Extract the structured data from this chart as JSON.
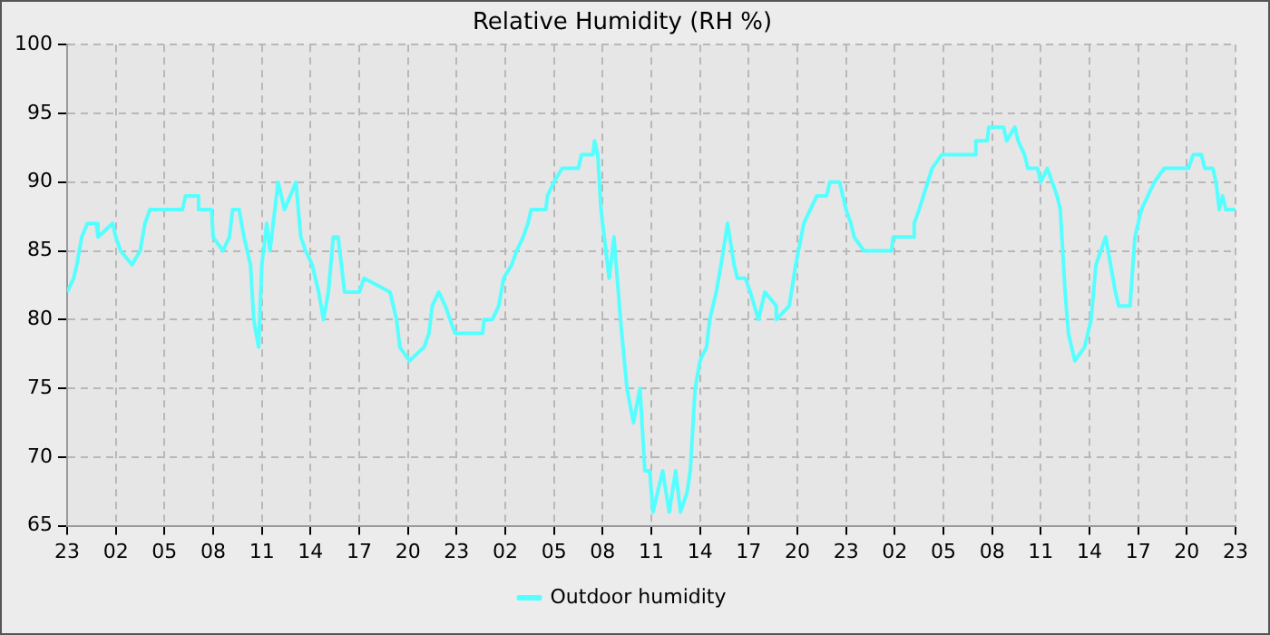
{
  "chart_data": {
    "type": "line",
    "title": "Relative Humidity (RH %)",
    "x": [
      "--01-01T23:00",
      "--01-01T23:24",
      "--01-01T23:36",
      "--01-01T23:54",
      "--01-02T00:15",
      "--01-02T00:48",
      "--01-02T00:54",
      "--01-02T01:48",
      "--01-02T02:00",
      "--01-02T02:18",
      "--01-02T03:00",
      "--01-02T03:30",
      "--01-02T03:48",
      "--01-02T04:06",
      "--01-02T06:06",
      "--01-02T06:18",
      "--01-02T07:06",
      "--01-02T07:06",
      "--01-02T07:54",
      "--01-02T08:00",
      "--01-02T08:36",
      "--01-02T09:00",
      "--01-02T09:12",
      "--01-02T09:36",
      "--01-02T09:54",
      "--01-02T10:18",
      "--01-02T10:30",
      "--01-02T10:48",
      "--01-02T11:00",
      "--01-02T11:18",
      "--01-02T11:30",
      "--01-02T12:00",
      "--01-02T12:24",
      "--01-02T13:06",
      "--01-02T13:24",
      "--01-02T13:42",
      "--01-02T14:06",
      "--01-02T14:30",
      "--01-02T14:48",
      "--01-02T15:06",
      "--01-02T15:24",
      "--01-02T15:42",
      "--01-02T16:06",
      "--01-02T17:00",
      "--01-02T17:18",
      "--01-02T18:54",
      "--01-02T19:18",
      "--01-02T19:30",
      "--01-02T20:06",
      "--01-02T21:00",
      "--01-02T21:18",
      "--01-02T21:30",
      "--01-02T21:54",
      "--01-02T22:18",
      "--01-02T22:54",
      "--01-03T00:36",
      "--01-03T00:42",
      "--01-03T01:12",
      "--01-03T01:36",
      "--01-03T01:54",
      "--01-03T02:24",
      "--01-03T02:42",
      "--01-03T03:06",
      "--01-03T03:24",
      "--01-03T03:36",
      "--01-03T04:30",
      "--01-03T04:36",
      "--01-03T05:00",
      "--01-03T05:30",
      "--01-03T06:30",
      "--01-03T06:42",
      "--01-03T07:24",
      "--01-03T07:30",
      "--01-03T07:42",
      "--01-03T07:54",
      "--01-03T08:12",
      "--01-03T08:24",
      "--01-03T08:42",
      "--01-03T09:06",
      "--01-03T09:30",
      "--01-03T09:54",
      "--01-03T10:18",
      "--01-03T10:36",
      "--01-03T10:54",
      "--01-03T11:06",
      "--01-03T11:42",
      "--01-03T12:06",
      "--01-03T12:30",
      "--01-03T12:48",
      "--01-03T13:12",
      "--01-03T13:24",
      "--01-03T13:42",
      "--01-03T14:00",
      "--01-03T14:24",
      "--01-03T14:36",
      "--01-03T15:00",
      "--01-03T15:18",
      "--01-03T15:42",
      "--01-03T16:06",
      "--01-03T16:18",
      "--01-03T16:48",
      "--01-03T17:06",
      "--01-03T17:36",
      "--01-03T18:00",
      "--01-03T18:42",
      "--01-03T18:42",
      "--01-03T19:30",
      "--01-03T19:54",
      "--01-03T20:24",
      "--01-03T21:12",
      "--01-03T21:48",
      "--01-03T22:00",
      "--01-03T22:36",
      "--01-03T23:00",
      "--01-03T23:18",
      "--01-03T23:30",
      "--01-04T00:06",
      "--01-04T01:48",
      "--01-04T01:54",
      "--01-04T03:06",
      "--01-04T03:12",
      "--01-04T03:30",
      "--01-04T03:54",
      "--01-04T04:18",
      "--01-04T04:54",
      "--01-04T07:00",
      "--01-04T07:00",
      "--01-04T07:42",
      "--01-04T07:48",
      "--01-04T08:42",
      "--01-04T08:54",
      "--01-04T09:24",
      "--01-04T09:36",
      "--01-04T10:00",
      "--01-04T10:12",
      "--01-04T10:48",
      "--01-04T11:00",
      "--01-04T11:24",
      "--01-04T11:42",
      "--01-04T12:00",
      "--01-04T12:12",
      "--01-04T12:30",
      "--01-04T12:42",
      "--01-04T13:06",
      "--01-04T13:42",
      "--01-04T14:06",
      "--01-04T14:24",
      "--01-04T14:42",
      "--01-04T15:00",
      "--01-04T15:18",
      "--01-04T15:36",
      "--01-04T15:48",
      "--01-04T16:30",
      "--01-04T16:48",
      "--01-04T17:12",
      "--01-04T17:36",
      "--01-04T18:00",
      "--01-04T18:36",
      "--01-04T20:06",
      "--01-04T20:24",
      "--01-04T20:54",
      "--01-04T21:06",
      "--01-04T21:36",
      "--01-04T21:48",
      "--01-04T22:00",
      "--01-04T22:12",
      "--01-04T22:24",
      "--01-04T23:00"
    ],
    "series": [
      {
        "name": "Outdoor humidity",
        "color": "#55ffff",
        "values": [
          82,
          83,
          84,
          86,
          87,
          87,
          86,
          87,
          86,
          85,
          84,
          85,
          87,
          88,
          88,
          89,
          89,
          88,
          88,
          86,
          85,
          86,
          88,
          88,
          86,
          84,
          80,
          78,
          84,
          87,
          85,
          90,
          88,
          90,
          86,
          85,
          84,
          82,
          80,
          82,
          86,
          86,
          82,
          82,
          83,
          82,
          80,
          78,
          77,
          78,
          79,
          81,
          82,
          81,
          79,
          79,
          80,
          80,
          81,
          83,
          84,
          85,
          86,
          87,
          88,
          88,
          89,
          90,
          91,
          91,
          92,
          92,
          93,
          92,
          88,
          85,
          83,
          86,
          80,
          75,
          72.5,
          75,
          69,
          69,
          66,
          69,
          66,
          69,
          66,
          67.4,
          69,
          75,
          77,
          78,
          80,
          82,
          84,
          87,
          84,
          83,
          83,
          82,
          80,
          82,
          81,
          80,
          81,
          84,
          87,
          89,
          89,
          90,
          90,
          88,
          87,
          86,
          85,
          85,
          86,
          86,
          87,
          88,
          89.5,
          91,
          92,
          92,
          93,
          93,
          94,
          94,
          93,
          94,
          93,
          92,
          91,
          91,
          90,
          91,
          90,
          89,
          88,
          82,
          79,
          77,
          78,
          80,
          84,
          85,
          86,
          84,
          82,
          81,
          81,
          86,
          88,
          89,
          90,
          91,
          91,
          92,
          92,
          91,
          91,
          90,
          88,
          89,
          88,
          88
        ]
      }
    ],
    "xlim": [
      "--01-01T23:00",
      "--01-04T23:00"
    ],
    "xticks": [
      {
        "value": "--01-01T23:00",
        "label": "23"
      },
      {
        "value": "--01-02T02:00",
        "label": "02"
      },
      {
        "value": "--01-02T05:00",
        "label": "05"
      },
      {
        "value": "--01-02T08:00",
        "label": "08"
      },
      {
        "value": "--01-02T11:00",
        "label": "11"
      },
      {
        "value": "--01-02T14:00",
        "label": "14"
      },
      {
        "value": "--01-02T17:00",
        "label": "17"
      },
      {
        "value": "--01-02T20:00",
        "label": "20"
      },
      {
        "value": "--01-02T23:00",
        "label": "23"
      },
      {
        "value": "--01-03T02:00",
        "label": "02"
      },
      {
        "value": "--01-03T05:00",
        "label": "05"
      },
      {
        "value": "--01-03T08:00",
        "label": "08"
      },
      {
        "value": "--01-03T11:00",
        "label": "11"
      },
      {
        "value": "--01-03T14:00",
        "label": "14"
      },
      {
        "value": "--01-03T17:00",
        "label": "17"
      },
      {
        "value": "--01-03T20:00",
        "label": "20"
      },
      {
        "value": "--01-03T23:00",
        "label": "23"
      },
      {
        "value": "--01-04T02:00",
        "label": "02"
      },
      {
        "value": "--01-04T05:00",
        "label": "05"
      },
      {
        "value": "--01-04T08:00",
        "label": "08"
      },
      {
        "value": "--01-04T11:00",
        "label": "11"
      },
      {
        "value": "--01-04T14:00",
        "label": "14"
      },
      {
        "value": "--01-04T17:00",
        "label": "17"
      },
      {
        "value": "--01-04T20:00",
        "label": "20"
      },
      {
        "value": "--01-04T23:00",
        "label": "23"
      }
    ],
    "ylim": [
      65,
      100
    ],
    "yticks": [
      65,
      70,
      75,
      80,
      85,
      90,
      95,
      100
    ],
    "grid": true,
    "legend": "bottom",
    "line_style": "solid",
    "marker": "none"
  }
}
